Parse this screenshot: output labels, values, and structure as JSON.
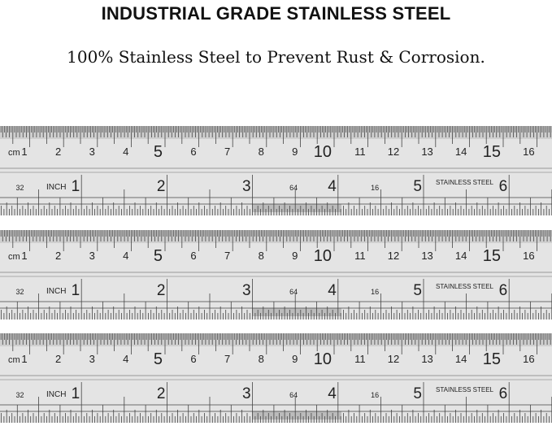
{
  "heading": "INDUSTRIAL GRADE STAINLESS STEEL",
  "subheading": "100% Stainless Steel to Prevent Rust & Corrosion.",
  "ruler": {
    "count": 3,
    "cm_unit": "cm",
    "inch_unit": "INCH",
    "cm_labels": [
      "1",
      "2",
      "3",
      "4",
      "5",
      "6",
      "7",
      "8",
      "9",
      "10",
      "11",
      "12",
      "13",
      "14",
      "15",
      "16"
    ],
    "inch_labels": [
      "1",
      "2",
      "3",
      "4",
      "5",
      "6"
    ],
    "scale_marks": [
      {
        "label": "32",
        "inch": 0.1
      },
      {
        "label": "64",
        "inch": 3.3
      },
      {
        "label": "16",
        "inch": 4.25
      }
    ],
    "brand_text": "STAINLESS STEEL",
    "colors": {
      "steel_light": "#e4e4e4",
      "steel_mid": "#cfcfcf",
      "ink": "#222222"
    }
  }
}
